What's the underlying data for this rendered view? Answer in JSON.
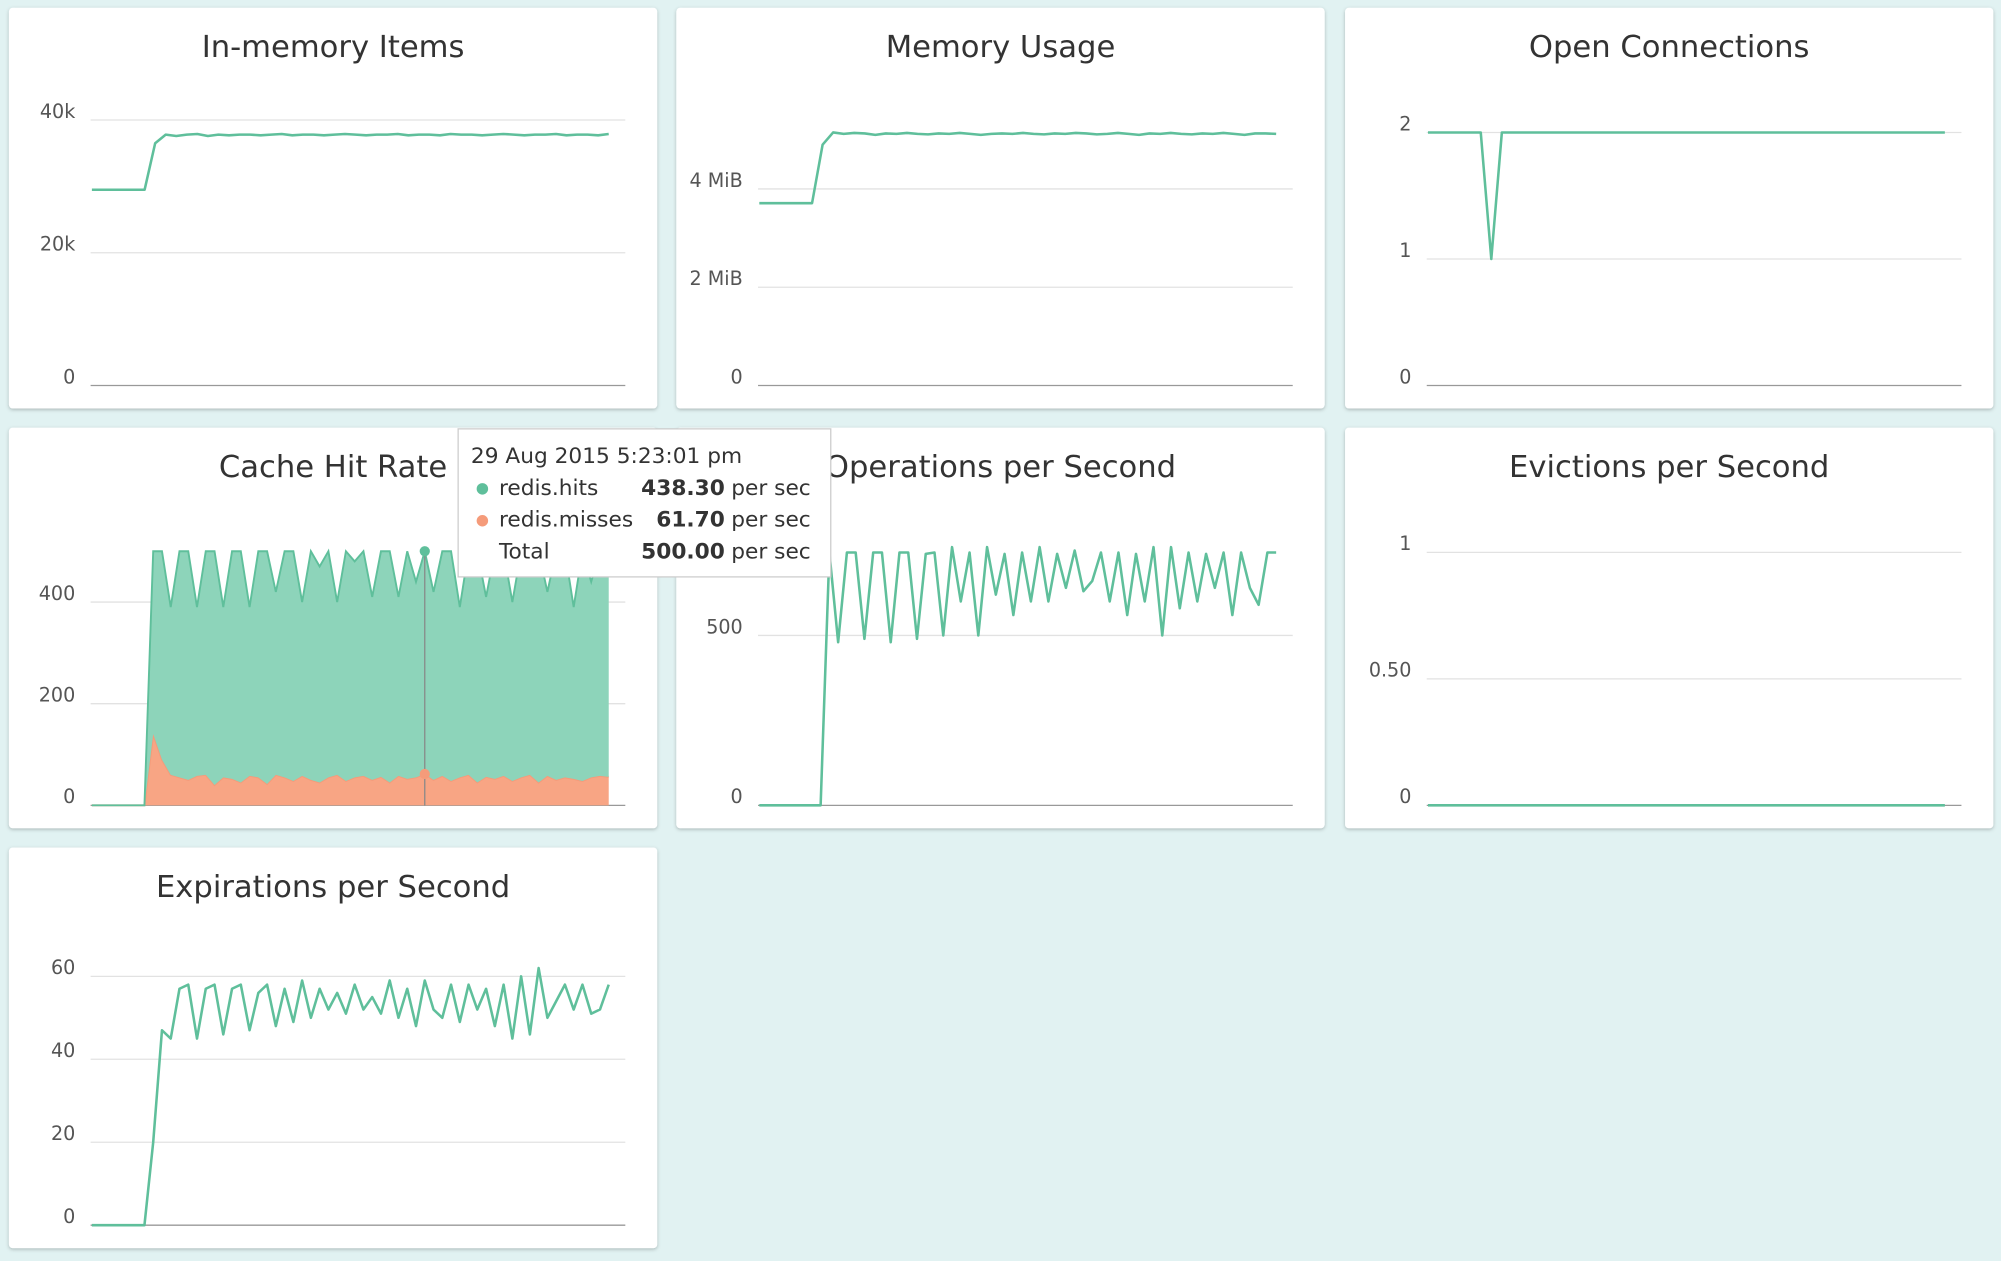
{
  "chart_data": [
    {
      "type": "line",
      "title": "In-memory Items",
      "color": "#5fbf9b",
      "values": [
        29500,
        29500,
        29500,
        29500,
        29500,
        29500,
        36500,
        37800,
        37600,
        37800,
        37900,
        37600,
        37800,
        37700,
        37800,
        37800,
        37700,
        37800,
        37900,
        37700,
        37800,
        37800,
        37700,
        37800,
        37900,
        37800,
        37700,
        37800,
        37800,
        37900,
        37700,
        37800,
        37800,
        37700,
        37900,
        37800,
        37800,
        37700,
        37800,
        37900,
        37800,
        37700,
        37800,
        37800,
        37900,
        37700,
        37800,
        37800,
        37700,
        37900
      ],
      "ylim": [
        0,
        42500
      ],
      "yticks": [
        0,
        {
          "value": 20000,
          "label": "20k"
        },
        {
          "value": 40000,
          "label": "40k"
        }
      ],
      "grid": true
    },
    {
      "type": "line",
      "title": "Memory Usage",
      "color": "#5fbf9b",
      "values": [
        3.71,
        3.71,
        3.71,
        3.71,
        3.71,
        3.71,
        4.9,
        5.15,
        5.12,
        5.14,
        5.13,
        5.1,
        5.13,
        5.12,
        5.14,
        5.12,
        5.11,
        5.13,
        5.12,
        5.14,
        5.12,
        5.1,
        5.12,
        5.13,
        5.12,
        5.14,
        5.12,
        5.11,
        5.13,
        5.12,
        5.14,
        5.13,
        5.11,
        5.12,
        5.14,
        5.12,
        5.1,
        5.13,
        5.12,
        5.14,
        5.12,
        5.11,
        5.13,
        5.12,
        5.14,
        5.12,
        5.1,
        5.13,
        5.13,
        5.12
      ],
      "ylim": [
        0,
        5.74
      ],
      "yticks": [
        0,
        {
          "value": 2,
          "label": "2 MiB"
        },
        {
          "value": 4,
          "label": "4 MiB"
        }
      ],
      "grid": true
    },
    {
      "type": "line",
      "title": "Open Connections",
      "color": "#5fbf9b",
      "values": [
        2,
        2,
        2,
        2,
        2,
        2,
        1,
        2,
        2,
        2,
        2,
        2,
        2,
        2,
        2,
        2,
        2,
        2,
        2,
        2,
        2,
        2,
        2,
        2,
        2,
        2,
        2,
        2,
        2,
        2,
        2,
        2,
        2,
        2,
        2,
        2,
        2,
        2,
        2,
        2,
        2,
        2,
        2,
        2,
        2,
        2,
        2,
        2,
        2,
        2
      ],
      "ylim": [
        0,
        2.23
      ],
      "yticks": [
        0,
        1,
        2
      ],
      "grid": true
    },
    {
      "type": "area",
      "title": "Cache Hit Rate",
      "stacked": true,
      "series": [
        {
          "name": "redis.hits",
          "color": "#5fbf9b",
          "fill": "#8dd4ba",
          "values": [
            0,
            0,
            0,
            0,
            0,
            0,
            0,
            360,
            410,
            330,
            445,
            450,
            332,
            440,
            460,
            335,
            448,
            455,
            332,
            445,
            458,
            360,
            445,
            452,
            342,
            450,
            425,
            445,
            340,
            452,
            425,
            442,
            360,
            444,
            455,
            352,
            448,
            385,
            438.3,
            370,
            442,
            452,
            335,
            440,
            455,
            354,
            448,
            442,
            352,
            445,
            420,
            455,
            362,
            450,
            445,
            338,
            452,
            385,
            442,
            444
          ]
        },
        {
          "name": "redis.misses",
          "color": "#f59b7a",
          "fill": "#f8a584",
          "values": [
            0,
            0,
            0,
            0,
            0,
            0,
            0,
            140,
            90,
            60,
            55,
            50,
            58,
            60,
            40,
            55,
            52,
            45,
            58,
            55,
            42,
            60,
            55,
            48,
            58,
            50,
            45,
            55,
            60,
            48,
            55,
            58,
            50,
            56,
            45,
            58,
            52,
            55,
            61.7,
            50,
            58,
            48,
            55,
            60,
            45,
            56,
            52,
            58,
            48,
            55,
            60,
            45,
            58,
            50,
            55,
            52,
            48,
            55,
            58,
            56
          ]
        }
      ],
      "ylim": [
        0,
        555
      ],
      "yticks": [
        0,
        200,
        400
      ],
      "grid": true,
      "tooltip": {
        "title": "29 Aug 2015 5:23:01 pm",
        "values": [
          438.3,
          61.7
        ],
        "value_labels": [
          "438.30",
          "61.70"
        ],
        "total": {
          "name": "Total",
          "value": 500,
          "label": "500.00"
        },
        "unit": "per sec"
      }
    },
    {
      "type": "line",
      "title": "Operations per Second",
      "color": "#5fbf9b",
      "values": [
        0,
        0,
        0,
        0,
        0,
        0,
        0,
        0,
        744,
        480,
        744,
        744,
        490,
        744,
        744,
        480,
        744,
        744,
        490,
        740,
        744,
        500,
        760,
        600,
        744,
        500,
        760,
        620,
        740,
        560,
        744,
        600,
        760,
        600,
        740,
        640,
        750,
        630,
        660,
        744,
        600,
        744,
        560,
        740,
        600,
        760,
        500,
        760,
        580,
        744,
        600,
        740,
        640,
        744,
        560,
        744,
        640,
        590,
        744,
        744
      ],
      "ylim": [
        0,
        830
      ],
      "yticks": [
        0,
        500
      ],
      "grid": true
    },
    {
      "type": "line",
      "title": "Evictions per Second",
      "color": "#5fbf9b",
      "values": [
        0,
        0,
        0,
        0,
        0,
        0,
        0,
        0,
        0,
        0,
        0,
        0,
        0,
        0,
        0,
        0,
        0,
        0,
        0,
        0,
        0,
        0,
        0,
        0,
        0,
        0,
        0,
        0,
        0,
        0,
        0,
        0,
        0,
        0,
        0,
        0,
        0,
        0,
        0,
        0,
        0,
        0,
        0,
        0,
        0,
        0,
        0,
        0,
        0,
        0
      ],
      "ylim": [
        0,
        1.115
      ],
      "yticks": [
        0,
        {
          "value": 0.5,
          "label": "0.50"
        },
        1
      ],
      "grid": true
    },
    {
      "type": "line",
      "title": "Expirations per Second",
      "color": "#5fbf9b",
      "values": [
        0,
        0,
        0,
        0,
        0,
        0,
        0,
        20,
        47,
        45,
        57,
        58,
        45,
        57,
        58,
        46,
        57,
        58,
        47,
        56,
        58,
        48,
        57,
        49,
        59,
        50,
        57,
        52,
        56,
        51,
        58,
        52,
        55,
        51,
        59,
        50,
        57,
        48,
        59,
        52,
        50,
        58,
        49,
        58,
        52,
        57,
        48,
        58,
        45,
        60,
        46,
        62,
        50,
        54,
        58,
        52,
        58,
        51,
        52,
        58
      ],
      "ylim": [
        0,
        68
      ],
      "yticks": [
        0,
        20,
        40,
        60
      ],
      "grid": true
    }
  ]
}
